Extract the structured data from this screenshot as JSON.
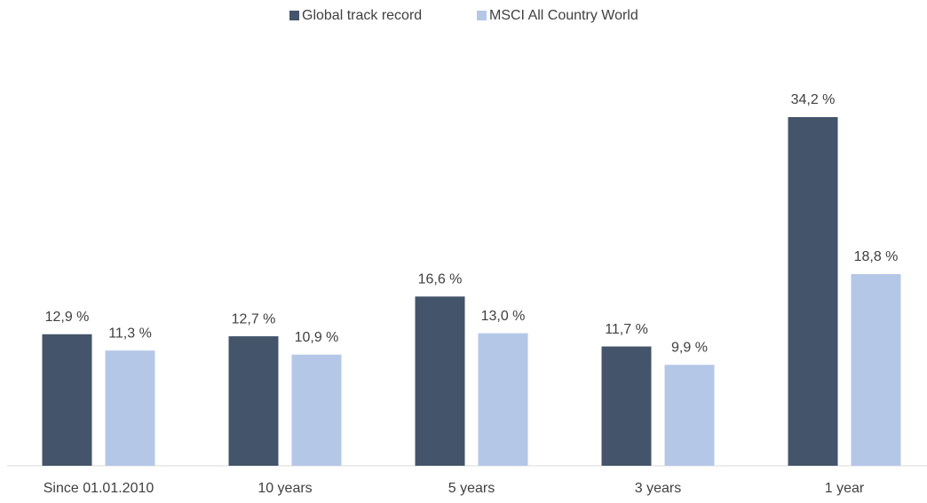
{
  "chart_data": {
    "type": "bar",
    "categories": [
      "Since 01.01.2010",
      "10 years",
      "5 years",
      "3 years",
      "1 year"
    ],
    "series": [
      {
        "name": "Global track record",
        "color": "#44546a",
        "values": [
          12.9,
          12.7,
          16.6,
          11.7,
          34.2
        ],
        "value_labels": [
          "12,9 %",
          "12,7 %",
          "16,6 %",
          "11,7 %",
          "34,2 %"
        ]
      },
      {
        "name": "MSCI All Country World",
        "color": "#b4c7e7",
        "values": [
          11.3,
          10.9,
          13.0,
          9.9,
          18.8
        ],
        "value_labels": [
          "11,3 %",
          "10,9 %",
          "13,0 %",
          "9,9 %",
          "18,8 %"
        ]
      }
    ],
    "legend": "top"
  }
}
